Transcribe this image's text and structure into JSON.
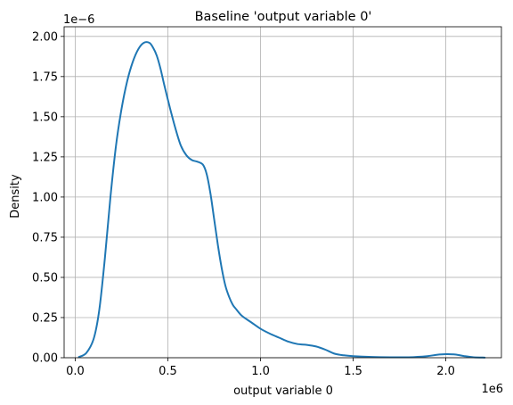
{
  "chart_data": {
    "type": "line",
    "title": "Baseline 'output variable 0'",
    "xlabel": "output variable 0",
    "ylabel": "Density",
    "x_offset_label": "1e6",
    "y_offset_label": "1e−6",
    "xlim": [
      -60000,
      2300000
    ],
    "ylim": [
      0,
      2.06
    ],
    "grid": true,
    "x_ticks": [
      0,
      0.5,
      1.0,
      1.5,
      2.0
    ],
    "x_tick_labels": [
      "0.0",
      "0.5",
      "1.0",
      "1.5",
      "2.0"
    ],
    "y_ticks": [
      0,
      0.25,
      0.5,
      0.75,
      1.0,
      1.25,
      1.5,
      1.75,
      2.0
    ],
    "y_tick_labels": [
      "0.00",
      "0.25",
      "0.50",
      "0.75",
      "1.00",
      "1.25",
      "1.50",
      "1.75",
      "2.00"
    ],
    "color": "#1f77b4",
    "series": [
      {
        "x": [
          20000,
          60000,
          100000,
          130000,
          160000,
          190000,
          220000,
          250000,
          280000,
          310000,
          340000,
          370000,
          400000,
          420000,
          440000,
          460000,
          480000,
          510000,
          540000,
          570000,
          600000,
          630000,
          660000,
          690000,
          710000,
          730000,
          750000,
          770000,
          790000,
          810000,
          830000,
          850000,
          870000,
          900000,
          950000,
          1000000,
          1050000,
          1100000,
          1150000,
          1200000,
          1250000,
          1300000,
          1350000,
          1400000,
          1450000,
          1500000,
          1600000,
          1700000,
          1800000,
          1900000,
          1950000,
          2000000,
          2050000,
          2100000,
          2150000,
          2210000
        ],
        "y": [
          0.005,
          0.03,
          0.12,
          0.3,
          0.62,
          1.0,
          1.32,
          1.55,
          1.72,
          1.84,
          1.92,
          1.96,
          1.96,
          1.93,
          1.88,
          1.8,
          1.7,
          1.56,
          1.43,
          1.32,
          1.26,
          1.23,
          1.22,
          1.2,
          1.14,
          1.02,
          0.86,
          0.7,
          0.56,
          0.45,
          0.38,
          0.33,
          0.3,
          0.26,
          0.22,
          0.18,
          0.15,
          0.125,
          0.1,
          0.085,
          0.08,
          0.07,
          0.05,
          0.025,
          0.015,
          0.01,
          0.005,
          0.003,
          0.003,
          0.01,
          0.018,
          0.022,
          0.02,
          0.01,
          0.003,
          0.001
        ]
      }
    ]
  }
}
